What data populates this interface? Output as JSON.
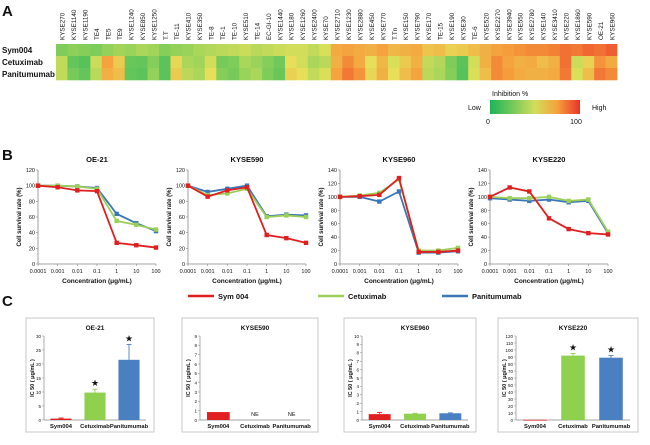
{
  "panel_labels": {
    "A": "A",
    "B": "B",
    "C": "C"
  },
  "chart_data": [
    {
      "type": "heatmap",
      "panel": "A",
      "columns": [
        "KYSE270",
        "KYSE1140",
        "KYSE1190",
        "TE4",
        "TE5",
        "TE9",
        "KYSE1240",
        "KYSE850",
        "KYSE1250",
        "T.T",
        "TE-11",
        "KYSE410",
        "KYSE350",
        "TE-8",
        "TE-1",
        "TE-10",
        "KYSE510",
        "TE-14",
        "EC-GI-10",
        "KYSE1440",
        "KYSE180",
        "KYSE1260",
        "KYSE2400",
        "KYSE70",
        "KYSE2710",
        "KYSE1230",
        "KYSE2880",
        "KYSE450",
        "KYSE770",
        "T.Tn",
        "KYSE150",
        "KYSE790",
        "KYSE170",
        "TE-15",
        "KYSE190",
        "KYSE30",
        "TE-6",
        "KYSE520",
        "KYSE2270",
        "KYSE3940",
        "KYSE550",
        "KYSE2780",
        "KYSE140",
        "KYSE3410",
        "KYSE220",
        "KYSE1860",
        "KYSE590",
        "OE-21",
        "KYSE960"
      ],
      "rows": [
        "Sym004",
        "Cetuximab",
        "Panitumumab"
      ],
      "values": [
        [
          28,
          32,
          30,
          28,
          34,
          38,
          36,
          40,
          38,
          30,
          34,
          36,
          40,
          42,
          44,
          46,
          48,
          44,
          46,
          48,
          50,
          50,
          46,
          52,
          72,
          74,
          72,
          70,
          74,
          68,
          70,
          72,
          64,
          66,
          60,
          62,
          66,
          70,
          74,
          76,
          78,
          80,
          80,
          82,
          86,
          84,
          88,
          86,
          90
        ],
        [
          46,
          20,
          16,
          48,
          74,
          62,
          22,
          20,
          30,
          18,
          58,
          40,
          38,
          50,
          26,
          28,
          40,
          36,
          30,
          24,
          56,
          50,
          40,
          44,
          70,
          80,
          72,
          56,
          68,
          52,
          62,
          70,
          46,
          42,
          28,
          18,
          50,
          70,
          80,
          74,
          70,
          72,
          66,
          70,
          86,
          48,
          60,
          78,
          72
        ],
        [
          46,
          26,
          20,
          44,
          70,
          66,
          20,
          18,
          34,
          18,
          62,
          44,
          40,
          56,
          30,
          26,
          36,
          40,
          28,
          22,
          60,
          56,
          46,
          52,
          74,
          84,
          78,
          58,
          70,
          56,
          66,
          74,
          44,
          40,
          30,
          16,
          52,
          66,
          80,
          76,
          72,
          70,
          70,
          72,
          84,
          52,
          66,
          84,
          80
        ]
      ],
      "colorbar": {
        "title": "Inhibition %",
        "low_label": "Low",
        "high_label": "High",
        "min": 0,
        "max": 100
      }
    },
    {
      "type": "line",
      "panel": "B",
      "title": "OE-21",
      "xlabel": "Concentration  (μg/mL)",
      "ylabel": "Cell survival rate (%)",
      "x": [
        0.0001,
        0.001,
        0.01,
        0.1,
        1,
        10,
        100
      ],
      "xticks": [
        "0.0001",
        "0.001",
        "0.01",
        "0.1",
        "1",
        "10",
        "100"
      ],
      "ylim": [
        0,
        120
      ],
      "yticks": [
        "0",
        "20",
        "40",
        "60",
        "80",
        "100",
        "120"
      ],
      "series": [
        {
          "name": "Sym 004",
          "color": "#e02020",
          "values": [
            100,
            98,
            94,
            93,
            27,
            24,
            21
          ]
        },
        {
          "name": "Cetuximab",
          "color": "#9ccf5a",
          "values": [
            100,
            100,
            99,
            96,
            55,
            50,
            44
          ]
        },
        {
          "name": "Panitumumab",
          "color": "#3a76b8",
          "values": [
            100,
            100,
            99,
            97,
            64,
            52,
            42
          ]
        }
      ]
    },
    {
      "type": "line",
      "panel": "B",
      "title": "KYSE590",
      "xlabel": "Concentration  (μg/mL)",
      "ylabel": "Cell survival rate (%)",
      "x": [
        0.0001,
        0.001,
        0.01,
        0.1,
        1,
        10,
        100
      ],
      "xticks": [
        "0.0001",
        "0.001",
        "0.01",
        "0.1",
        "1",
        "10",
        "100"
      ],
      "ylim": [
        0,
        120
      ],
      "yticks": [
        "0",
        "20",
        "40",
        "60",
        "80",
        "100",
        "120"
      ],
      "series": [
        {
          "name": "Sym 004",
          "color": "#e02020",
          "values": [
            100,
            86,
            94,
            98,
            37,
            33,
            27
          ]
        },
        {
          "name": "Cetuximab",
          "color": "#9ccf5a",
          "values": [
            100,
            88,
            90,
            96,
            60,
            62,
            60
          ]
        },
        {
          "name": "Panitumumab",
          "color": "#3a76b8",
          "values": [
            100,
            92,
            96,
            100,
            61,
            63,
            62
          ]
        }
      ]
    },
    {
      "type": "line",
      "panel": "B",
      "title": "KYSE960",
      "xlabel": "Concentration  (μg/mL)",
      "ylabel": "Cell survival rate (%)",
      "x": [
        0.0001,
        0.001,
        0.01,
        0.1,
        1,
        10,
        100
      ],
      "xticks": [
        "0.0001",
        "0.001",
        "0.01",
        "0.1",
        "1",
        "10",
        "100"
      ],
      "ylim": [
        0,
        140
      ],
      "yticks": [
        "0",
        "20",
        "40",
        "60",
        "80",
        "100",
        "120",
        "140"
      ],
      "series": [
        {
          "name": "Sym 004",
          "color": "#e02020",
          "values": [
            100,
            101,
            103,
            128,
            18,
            18,
            20
          ]
        },
        {
          "name": "Cetuximab",
          "color": "#9ccf5a",
          "values": [
            100,
            102,
            106,
            126,
            20,
            20,
            24
          ]
        },
        {
          "name": "Panitumumab",
          "color": "#3a76b8",
          "values": [
            100,
            100,
            93,
            108,
            17,
            17,
            19
          ]
        }
      ]
    },
    {
      "type": "line",
      "panel": "B",
      "title": "KYSE220",
      "xlabel": "Concentration  (μg/mL)",
      "ylabel": "Cell survival rate (%)",
      "x": [
        0.0001,
        0.001,
        0.01,
        0.1,
        1,
        10,
        100
      ],
      "xticks": [
        "0.0001",
        "0.001",
        "0.01",
        "0.1",
        "1",
        "10",
        "100"
      ],
      "ylim": [
        0,
        140
      ],
      "yticks": [
        "0",
        "20",
        "40",
        "60",
        "80",
        "100",
        "120",
        "140"
      ],
      "series": [
        {
          "name": "Sym 004",
          "color": "#e02020",
          "values": [
            100,
            114,
            108,
            68,
            52,
            46,
            44
          ]
        },
        {
          "name": "Cetuximab",
          "color": "#9ccf5a",
          "values": [
            100,
            98,
            98,
            100,
            94,
            96,
            48
          ]
        },
        {
          "name": "Panitumumab",
          "color": "#3a76b8",
          "values": [
            98,
            96,
            94,
            96,
            92,
            94,
            46
          ]
        }
      ]
    },
    {
      "type": "bar",
      "panel": "C",
      "title": "OE-21",
      "categories": [
        "Sym004",
        "Cetuximab",
        "Panitumumab"
      ],
      "values": [
        0.5,
        9.8,
        21.5
      ],
      "errors": [
        0.2,
        1.2,
        5.5
      ],
      "colors": [
        "#e02020",
        "#8fd04e",
        "#4a7fc1"
      ],
      "annotations": [
        "",
        "★",
        "★"
      ],
      "ylabel": "IC 50 ( μg/mL )",
      "ylim": [
        0,
        30
      ],
      "yticks": [
        "0",
        "5",
        "10",
        "15",
        "20",
        "25",
        "30"
      ]
    },
    {
      "type": "bar",
      "panel": "C",
      "title": "KYSE590",
      "categories": [
        "Sym004",
        "Cetuximab",
        "Panitumumab"
      ],
      "values": [
        0.85,
        0,
        0
      ],
      "errors": [
        0,
        0,
        0
      ],
      "colors": [
        "#e02020",
        "#8fd04e",
        "#4a7fc1"
      ],
      "annotations": [
        "",
        "NE",
        "NE"
      ],
      "ylabel": "IC 50 ( μg/mL )",
      "ylim": [
        0,
        9
      ],
      "yticks": [
        "0",
        "1",
        "2",
        "3",
        "4",
        "5",
        "6",
        "7",
        "8",
        "9"
      ]
    },
    {
      "type": "bar",
      "panel": "C",
      "title": "KYSE960",
      "categories": [
        "Sym004",
        "Cetuximab",
        "Panitumumab"
      ],
      "values": [
        0.7,
        0.75,
        0.8
      ],
      "errors": [
        0.2,
        0.05,
        0.05
      ],
      "colors": [
        "#e02020",
        "#8fd04e",
        "#4a7fc1"
      ],
      "annotations": [
        "",
        "",
        ""
      ],
      "ylabel": "IC 50 ( μg/mL )",
      "ylim": [
        0,
        10
      ],
      "yticks": [
        "0",
        "1",
        "2",
        "3",
        "4",
        "5",
        "6",
        "7",
        "8",
        "9",
        "10"
      ]
    },
    {
      "type": "bar",
      "panel": "C",
      "title": "KYSE220",
      "categories": [
        "Sym004",
        "Cetuximab",
        "Panitumumab"
      ],
      "values": [
        0.3,
        92,
        89
      ],
      "errors": [
        0,
        3,
        3
      ],
      "colors": [
        "#e02020",
        "#8fd04e",
        "#4a7fc1"
      ],
      "annotations": [
        "",
        "★",
        "★"
      ],
      "ylabel": "IC 50 ( μg/mL )",
      "ylim": [
        0,
        120
      ],
      "yticks": [
        "0",
        "10",
        "20",
        "30",
        "40",
        "50",
        "60",
        "70",
        "80",
        "90",
        "100",
        "110",
        "120"
      ]
    }
  ],
  "legend": [
    {
      "label": "Sym 004",
      "color": "#e02020"
    },
    {
      "label": "Cetuximab",
      "color": "#9ccf5a"
    },
    {
      "label": "Panitumumab",
      "color": "#3a76b8"
    }
  ]
}
